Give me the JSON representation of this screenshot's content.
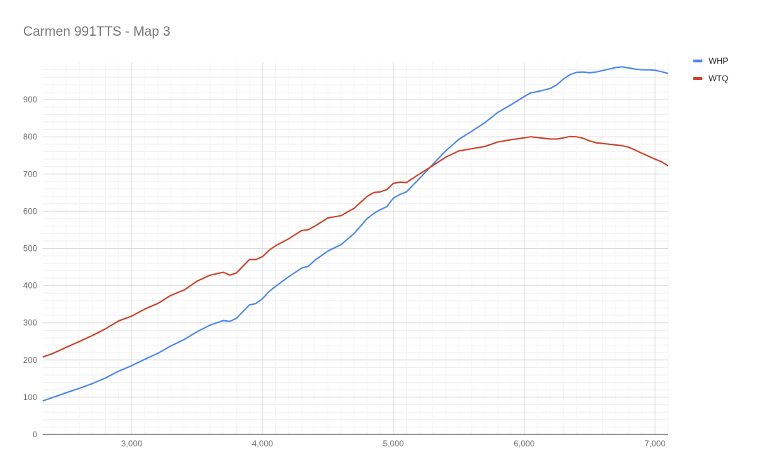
{
  "chart_data": {
    "type": "line",
    "title": "Carmen 991TTS - Map 3",
    "xlabel": "",
    "ylabel": "",
    "xlim": [
      2320,
      7100
    ],
    "ylim": [
      0,
      1000
    ],
    "x_ticks": [
      3000,
      4000,
      5000,
      6000,
      7000
    ],
    "x_tick_labels": [
      "3,000",
      "4,000",
      "5,000",
      "6,000",
      "7,000"
    ],
    "y_ticks": [
      0,
      100,
      200,
      300,
      400,
      500,
      600,
      700,
      800,
      900
    ],
    "y_tick_labels": [
      "0",
      "100",
      "200",
      "300",
      "400",
      "500",
      "600",
      "700",
      "800",
      "900"
    ],
    "grid": true,
    "legend_position": "right",
    "x": [
      2320,
      2400,
      2500,
      2600,
      2700,
      2800,
      2900,
      3000,
      3100,
      3200,
      3300,
      3400,
      3500,
      3600,
      3700,
      3750,
      3800,
      3850,
      3900,
      3950,
      4000,
      4050,
      4100,
      4200,
      4300,
      4350,
      4400,
      4500,
      4600,
      4700,
      4800,
      4850,
      4900,
      4950,
      5000,
      5050,
      5100,
      5200,
      5300,
      5400,
      5500,
      5600,
      5700,
      5800,
      5900,
      6000,
      6050,
      6100,
      6200,
      6250,
      6300,
      6350,
      6400,
      6450,
      6500,
      6550,
      6600,
      6700,
      6750,
      6800,
      6850,
      6900,
      6950,
      7000,
      7050,
      7100
    ],
    "series": [
      {
        "name": "WHP",
        "color": "#4a86e8",
        "values": [
          90,
          100,
          112,
          124,
          137,
          152,
          170,
          185,
          202,
          218,
          238,
          255,
          276,
          294,
          306,
          304,
          312,
          330,
          348,
          352,
          365,
          384,
          398,
          424,
          447,
          452,
          468,
          493,
          510,
          540,
          580,
          594,
          604,
          612,
          635,
          645,
          652,
          688,
          725,
          762,
          793,
          815,
          838,
          866,
          886,
          908,
          918,
          921,
          930,
          940,
          955,
          967,
          973,
          974,
          972,
          974,
          978,
          986,
          988,
          985,
          982,
          980,
          980,
          979,
          975,
          970
        ]
      },
      {
        "name": "WTQ",
        "color": "#cc4125",
        "values": [
          208,
          218,
          234,
          250,
          266,
          284,
          305,
          318,
          337,
          352,
          374,
          388,
          412,
          428,
          436,
          428,
          434,
          452,
          470,
          470,
          478,
          495,
          507,
          526,
          548,
          550,
          560,
          582,
          588,
          608,
          640,
          650,
          652,
          658,
          675,
          678,
          677,
          700,
          722,
          745,
          762,
          768,
          774,
          786,
          792,
          797,
          800,
          798,
          794,
          794,
          797,
          801,
          800,
          796,
          789,
          784,
          782,
          778,
          776,
          772,
          764,
          756,
          748,
          740,
          733,
          722
        ]
      }
    ]
  }
}
